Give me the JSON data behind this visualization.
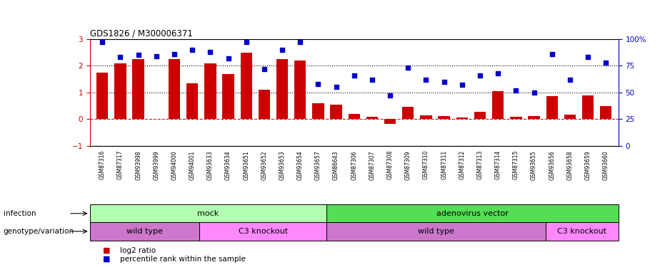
{
  "title": "GDS1826 / M300006371",
  "samples": [
    "GSM87316",
    "GSM87317",
    "GSM93998",
    "GSM93999",
    "GSM94000",
    "GSM94001",
    "GSM93633",
    "GSM93634",
    "GSM93651",
    "GSM93652",
    "GSM93653",
    "GSM93654",
    "GSM93657",
    "GSM86643",
    "GSM87306",
    "GSM87307",
    "GSM87308",
    "GSM87309",
    "GSM87310",
    "GSM87311",
    "GSM87312",
    "GSM87313",
    "GSM87314",
    "GSM87315",
    "GSM93655",
    "GSM93656",
    "GSM93658",
    "GSM93659",
    "GSM93660"
  ],
  "log2_ratio": [
    1.75,
    2.1,
    2.25,
    0.0,
    2.25,
    1.35,
    2.1,
    1.7,
    2.5,
    1.1,
    2.25,
    2.2,
    0.6,
    0.55,
    0.2,
    0.1,
    -0.18,
    0.45,
    0.13,
    0.12,
    0.05,
    0.28,
    1.05,
    0.1,
    0.12,
    0.85,
    0.17,
    0.88,
    0.5
  ],
  "percentile": [
    97,
    83,
    85,
    84,
    86,
    90,
    88,
    82,
    97,
    72,
    90,
    97,
    58,
    55,
    66,
    62,
    47,
    73,
    62,
    60,
    57,
    66,
    68,
    52,
    50,
    86,
    62,
    83,
    78
  ],
  "infection_groups": [
    {
      "label": "mock",
      "start": 0,
      "end": 13,
      "color": "#b2ffb2"
    },
    {
      "label": "adenovirus vector",
      "start": 13,
      "end": 29,
      "color": "#55dd55"
    }
  ],
  "genotype_groups": [
    {
      "label": "wild type",
      "start": 0,
      "end": 6,
      "color": "#cc77cc"
    },
    {
      "label": "C3 knockout",
      "start": 6,
      "end": 13,
      "color": "#ff88ff"
    },
    {
      "label": "wild type",
      "start": 13,
      "end": 25,
      "color": "#cc77cc"
    },
    {
      "label": "C3 knockout",
      "start": 25,
      "end": 29,
      "color": "#ff88ff"
    }
  ],
  "bar_color": "#cc0000",
  "dot_color": "#0000cc",
  "ylim_left": [
    -1,
    3
  ],
  "ylim_right": [
    0,
    100
  ],
  "yticks_left": [
    -1,
    0,
    1,
    2,
    3
  ],
  "yticks_right": [
    0,
    25,
    50,
    75,
    100
  ],
  "yticklabels_right": [
    "0",
    "25",
    "50",
    "75",
    "100%"
  ],
  "legend_bar_label": "log2 ratio",
  "legend_dot_label": "percentile rank within the sample",
  "infection_row_label": "infection",
  "genotype_row_label": "genotype/variation"
}
